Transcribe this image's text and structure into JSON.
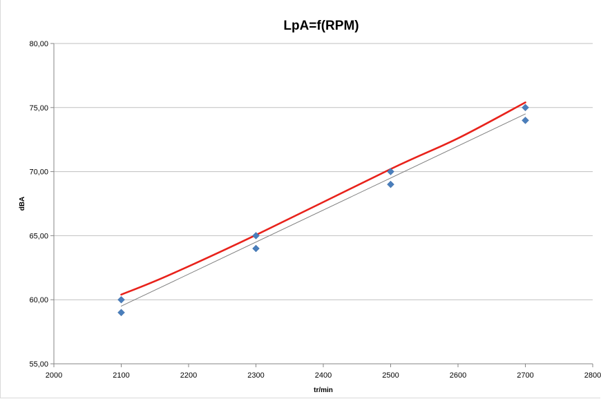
{
  "chart_data": {
    "type": "scatter",
    "title": "LpA=f(RPM)",
    "xlabel": "tr/min",
    "ylabel": "dBA",
    "xlim": [
      2000,
      2800
    ],
    "ylim": [
      55,
      80
    ],
    "x_ticks": [
      "2000",
      "2100",
      "2200",
      "2300",
      "2400",
      "2500",
      "2600",
      "2700",
      "2800"
    ],
    "y_ticks": [
      "55,00",
      "60,00",
      "65,00",
      "70,00",
      "75,00",
      "80,00"
    ],
    "grid": "horizontal",
    "legend": "none",
    "series": [
      {
        "kind": "scatter",
        "marker": "diamond",
        "color": "#4a7ebb",
        "points": [
          {
            "x": 2100,
            "y": 60
          },
          {
            "x": 2100,
            "y": 59
          },
          {
            "x": 2300,
            "y": 65
          },
          {
            "x": 2300,
            "y": 64
          },
          {
            "x": 2500,
            "y": 70
          },
          {
            "x": 2500,
            "y": 69
          },
          {
            "x": 2700,
            "y": 75
          },
          {
            "x": 2700,
            "y": 74
          }
        ]
      },
      {
        "kind": "line",
        "color": "#e8221b",
        "points": [
          {
            "x": 2100,
            "y": 60.4
          },
          {
            "x": 2170,
            "y": 61.9
          },
          {
            "x": 2300,
            "y": 65.05
          },
          {
            "x": 2500,
            "y": 70.2
          },
          {
            "x": 2600,
            "y": 72.6
          },
          {
            "x": 2700,
            "y": 75.4
          }
        ]
      },
      {
        "kind": "line",
        "color": "#7f7f7f",
        "points": [
          {
            "x": 2100,
            "y": 59.5
          },
          {
            "x": 2700,
            "y": 74.5
          }
        ]
      }
    ]
  }
}
